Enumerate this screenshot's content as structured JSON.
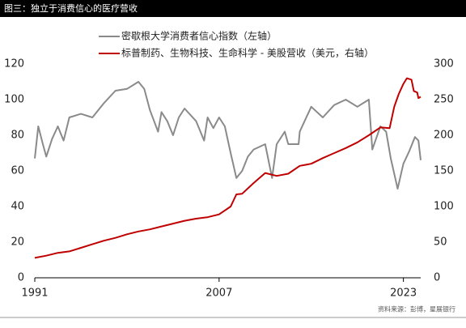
{
  "chart_data": {
    "type": "line",
    "title": "图三：独立于消费信心的医疗营收",
    "source": "资料来源：彭博，星展银行",
    "xlim": [
      1991,
      2024.5
    ],
    "xticks": [
      1991,
      2007,
      2023
    ],
    "ylim": [
      0,
      120
    ],
    "yticks": [
      0,
      20,
      40,
      60,
      80,
      100,
      120
    ],
    "y2lim": [
      0,
      300
    ],
    "y2ticks": [
      0,
      50,
      100,
      150,
      200,
      250,
      300
    ],
    "series": [
      {
        "name": "密歇根大学消费者信心指数（左轴）",
        "color": "#8a8a8a",
        "x": [
          1991,
          1991.3,
          1991.7,
          1992,
          1992.5,
          1993,
          1993.5,
          1994,
          1995,
          1996,
          1997,
          1998,
          1999,
          2000,
          2000.5,
          2001,
          2001.7,
          2002,
          2002.5,
          2003,
          2003.5,
          2004,
          2005,
          2005.7,
          2006,
          2006.5,
          2007,
          2007.5,
          2008,
          2008.5,
          2009,
          2009.5,
          2010,
          2011,
          2011.6,
          2012,
          2012.7,
          2013,
          2013.9,
          2014,
          2015,
          2016,
          2017,
          2018,
          2019,
          2019.5,
          2020,
          2020.3,
          2021,
          2021.5,
          2021.9,
          2022.5,
          2023,
          2023.5,
          2024,
          2024.3,
          2024.5
        ],
        "values": [
          67,
          85,
          75,
          68,
          78,
          85,
          77,
          90,
          92,
          90,
          98,
          105,
          106,
          110,
          106,
          94,
          82,
          93,
          88,
          80,
          90,
          95,
          88,
          77,
          90,
          84,
          90,
          85,
          70,
          56,
          60,
          68,
          72,
          75,
          56,
          75,
          82,
          75,
          75,
          82,
          96,
          90,
          97,
          100,
          96,
          98,
          100,
          72,
          85,
          82,
          67,
          50,
          64,
          71,
          79,
          77,
          66
        ]
      },
      {
        "name": "标普制药、生物科技、生命科学 - 美股营收（美元，右轴）",
        "color": "#c00000",
        "axis": "y2",
        "x": [
          1991,
          1992,
          1993,
          1994,
          1995,
          1996,
          1997,
          1998,
          1999,
          2000,
          2001,
          2002,
          2003,
          2004,
          2005,
          2006,
          2007,
          2008,
          2008.5,
          2009,
          2010,
          2011,
          2012,
          2013,
          2014,
          2015,
          2016,
          2017,
          2018,
          2019,
          2020,
          2021,
          2021.8,
          2022.2,
          2022.6,
          2023,
          2023.3,
          2023.7,
          2023.9,
          2024.2,
          2024.3,
          2024.5
        ],
        "values": [
          28,
          31,
          35,
          37,
          42,
          47,
          52,
          56,
          61,
          65,
          68,
          72,
          76,
          80,
          83,
          85,
          89,
          100,
          117,
          118,
          133,
          147,
          143,
          146,
          157,
          160,
          168,
          175,
          182,
          190,
          200,
          211,
          210,
          240,
          258,
          272,
          280,
          278,
          262,
          260,
          252,
          254
        ]
      }
    ]
  }
}
